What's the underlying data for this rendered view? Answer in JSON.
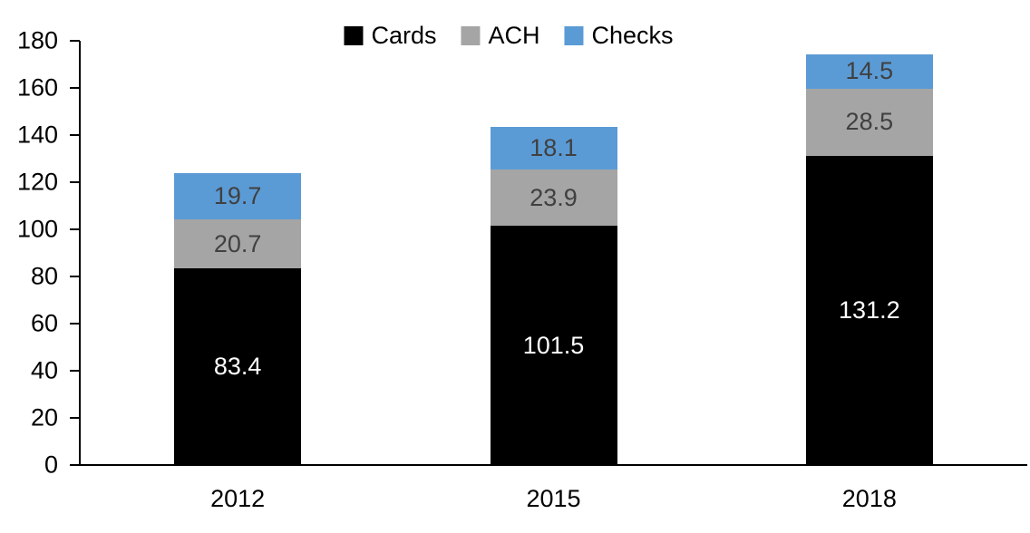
{
  "chart_data": {
    "type": "bar",
    "stacked": true,
    "title": "",
    "xlabel": "",
    "ylabel": "",
    "grid": false,
    "legend_position": "top-center",
    "categories": [
      "2012",
      "2015",
      "2018"
    ],
    "series": [
      {
        "name": "Cards",
        "color": "#000000",
        "label_color": "#ffffff",
        "values": [
          83.4,
          101.5,
          131.2
        ]
      },
      {
        "name": "ACH",
        "color": "#a5a5a5",
        "label_color": "#404040",
        "values": [
          20.7,
          23.9,
          28.5
        ]
      },
      {
        "name": "Checks",
        "color": "#5b9bd5",
        "label_color": "#404040",
        "values": [
          19.7,
          18.1,
          14.5
        ]
      }
    ],
    "yticks": [
      0,
      20,
      40,
      60,
      80,
      100,
      120,
      140,
      160,
      180
    ],
    "ylim": [
      0,
      180
    ],
    "axis_color": "#000000"
  },
  "layout_note": ""
}
